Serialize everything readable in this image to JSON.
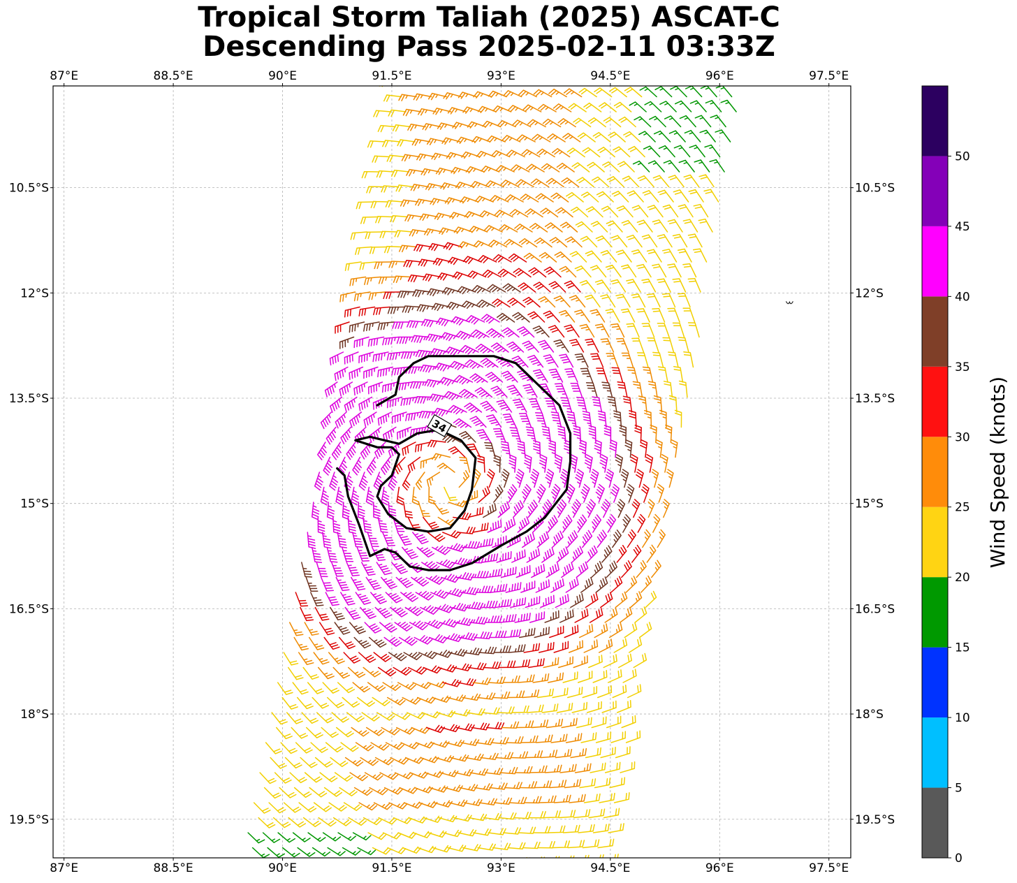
{
  "title": {
    "line1": "Tropical Storm Taliah (2025) ASCAT-C",
    "line2": "Descending Pass 2025-02-11 03:33Z"
  },
  "map": {
    "lon_range": [
      86.85,
      97.8
    ],
    "lat_range": [
      -20.05,
      -9.05
    ],
    "lon_ticks": [
      {
        "value": 87,
        "label": "87°E"
      },
      {
        "value": 88.5,
        "label": "88.5°E"
      },
      {
        "value": 90,
        "label": "90°E"
      },
      {
        "value": 91.5,
        "label": "91.5°E"
      },
      {
        "value": 93,
        "label": "93°E"
      },
      {
        "value": 94.5,
        "label": "94.5°E"
      },
      {
        "value": 96,
        "label": "96°E"
      },
      {
        "value": 97.5,
        "label": "97.5°E"
      }
    ],
    "lat_ticks": [
      {
        "value": -10.5,
        "label": "10.5°S"
      },
      {
        "value": -12,
        "label": "12°S"
      },
      {
        "value": -13.5,
        "label": "13.5°S"
      },
      {
        "value": -15,
        "label": "15°S"
      },
      {
        "value": -16.5,
        "label": "16.5°S"
      },
      {
        "value": -18,
        "label": "18°S"
      },
      {
        "value": -19.5,
        "label": "19.5°S"
      }
    ],
    "gridlines": true,
    "storm_center": {
      "lon": 92.3,
      "lat": -14.7
    },
    "swath_left_edge": [
      [
        91.5,
        -9.05
      ],
      [
        89.4,
        -20.05
      ]
    ],
    "swath_right_edge": [
      [
        96.4,
        -9.05
      ],
      [
        94.5,
        -20.05
      ]
    ],
    "contour_34kt": {
      "label": "34",
      "label_at": [
        92.15,
        -13.9
      ],
      "outer_ring": [
        [
          91.3,
          -13.6
        ],
        [
          91.55,
          -13.45
        ],
        [
          91.6,
          -13.2
        ],
        [
          91.8,
          -13.0
        ],
        [
          92.0,
          -12.9
        ],
        [
          92.9,
          -12.9
        ],
        [
          93.2,
          -13.0
        ],
        [
          93.5,
          -13.3
        ],
        [
          93.8,
          -13.6
        ],
        [
          93.95,
          -14.0
        ],
        [
          93.95,
          -14.4
        ],
        [
          93.9,
          -14.8
        ],
        [
          93.75,
          -15.0
        ],
        [
          93.6,
          -15.2
        ],
        [
          93.35,
          -15.4
        ],
        [
          93.0,
          -15.6
        ],
        [
          92.6,
          -15.85
        ],
        [
          92.3,
          -15.95
        ],
        [
          92.0,
          -15.95
        ],
        [
          91.75,
          -15.9
        ],
        [
          91.55,
          -15.7
        ],
        [
          91.4,
          -15.65
        ],
        [
          91.2,
          -15.75
        ],
        [
          91.05,
          -15.3
        ],
        [
          90.9,
          -14.9
        ],
        [
          90.85,
          -14.6
        ],
        [
          90.75,
          -14.5
        ]
      ],
      "inner_ring": [
        [
          91.35,
          -14.75
        ],
        [
          91.5,
          -14.6
        ],
        [
          91.6,
          -14.3
        ],
        [
          91.5,
          -14.2
        ],
        [
          91.3,
          -14.2
        ],
        [
          91.0,
          -14.1
        ],
        [
          91.2,
          -14.05
        ],
        [
          91.6,
          -14.15
        ],
        [
          91.85,
          -14.0
        ],
        [
          92.15,
          -13.95
        ],
        [
          92.45,
          -14.1
        ],
        [
          92.65,
          -14.35
        ],
        [
          92.6,
          -14.8
        ],
        [
          92.5,
          -15.1
        ],
        [
          92.3,
          -15.35
        ],
        [
          92.0,
          -15.4
        ],
        [
          91.7,
          -15.35
        ],
        [
          91.45,
          -15.15
        ],
        [
          91.3,
          -14.9
        ],
        [
          91.35,
          -14.75
        ]
      ]
    },
    "extra_mark": {
      "lon": 96.95,
      "lat": -12.15
    }
  },
  "colorbar": {
    "label": "Wind Speed (knots)",
    "range": [
      0,
      55
    ],
    "tick_values": [
      0,
      5,
      10,
      15,
      20,
      25,
      30,
      35,
      40,
      45,
      50
    ],
    "tick_labels": [
      "0",
      "5",
      "10",
      "15",
      "20",
      "25",
      "30",
      "35",
      "40",
      "45",
      "50"
    ],
    "bins": [
      {
        "min": 0,
        "max": 5,
        "color": "#595959"
      },
      {
        "min": 5,
        "max": 10,
        "color": "#00bfff"
      },
      {
        "min": 10,
        "max": 15,
        "color": "#0033ff"
      },
      {
        "min": 15,
        "max": 20,
        "color": "#009900"
      },
      {
        "min": 20,
        "max": 25,
        "color": "#ffd413"
      },
      {
        "min": 25,
        "max": 30,
        "color": "#ff8c0a"
      },
      {
        "min": 30,
        "max": 35,
        "color": "#ff1111"
      },
      {
        "min": 35,
        "max": 40,
        "color": "#7f3f28"
      },
      {
        "min": 40,
        "max": 45,
        "color": "#ff00ff"
      },
      {
        "min": 45,
        "max": 50,
        "color": "#8400b8"
      },
      {
        "min": 50,
        "max": 55,
        "color": "#2c0060"
      }
    ]
  },
  "barb_colors": {
    "gt40": "#dd00dd",
    "b35_40": "#6e3320",
    "b30_35": "#dd0000",
    "b25_30": "#ef8a00",
    "b20_25": "#f2cf00",
    "b15_20": "#009600"
  }
}
